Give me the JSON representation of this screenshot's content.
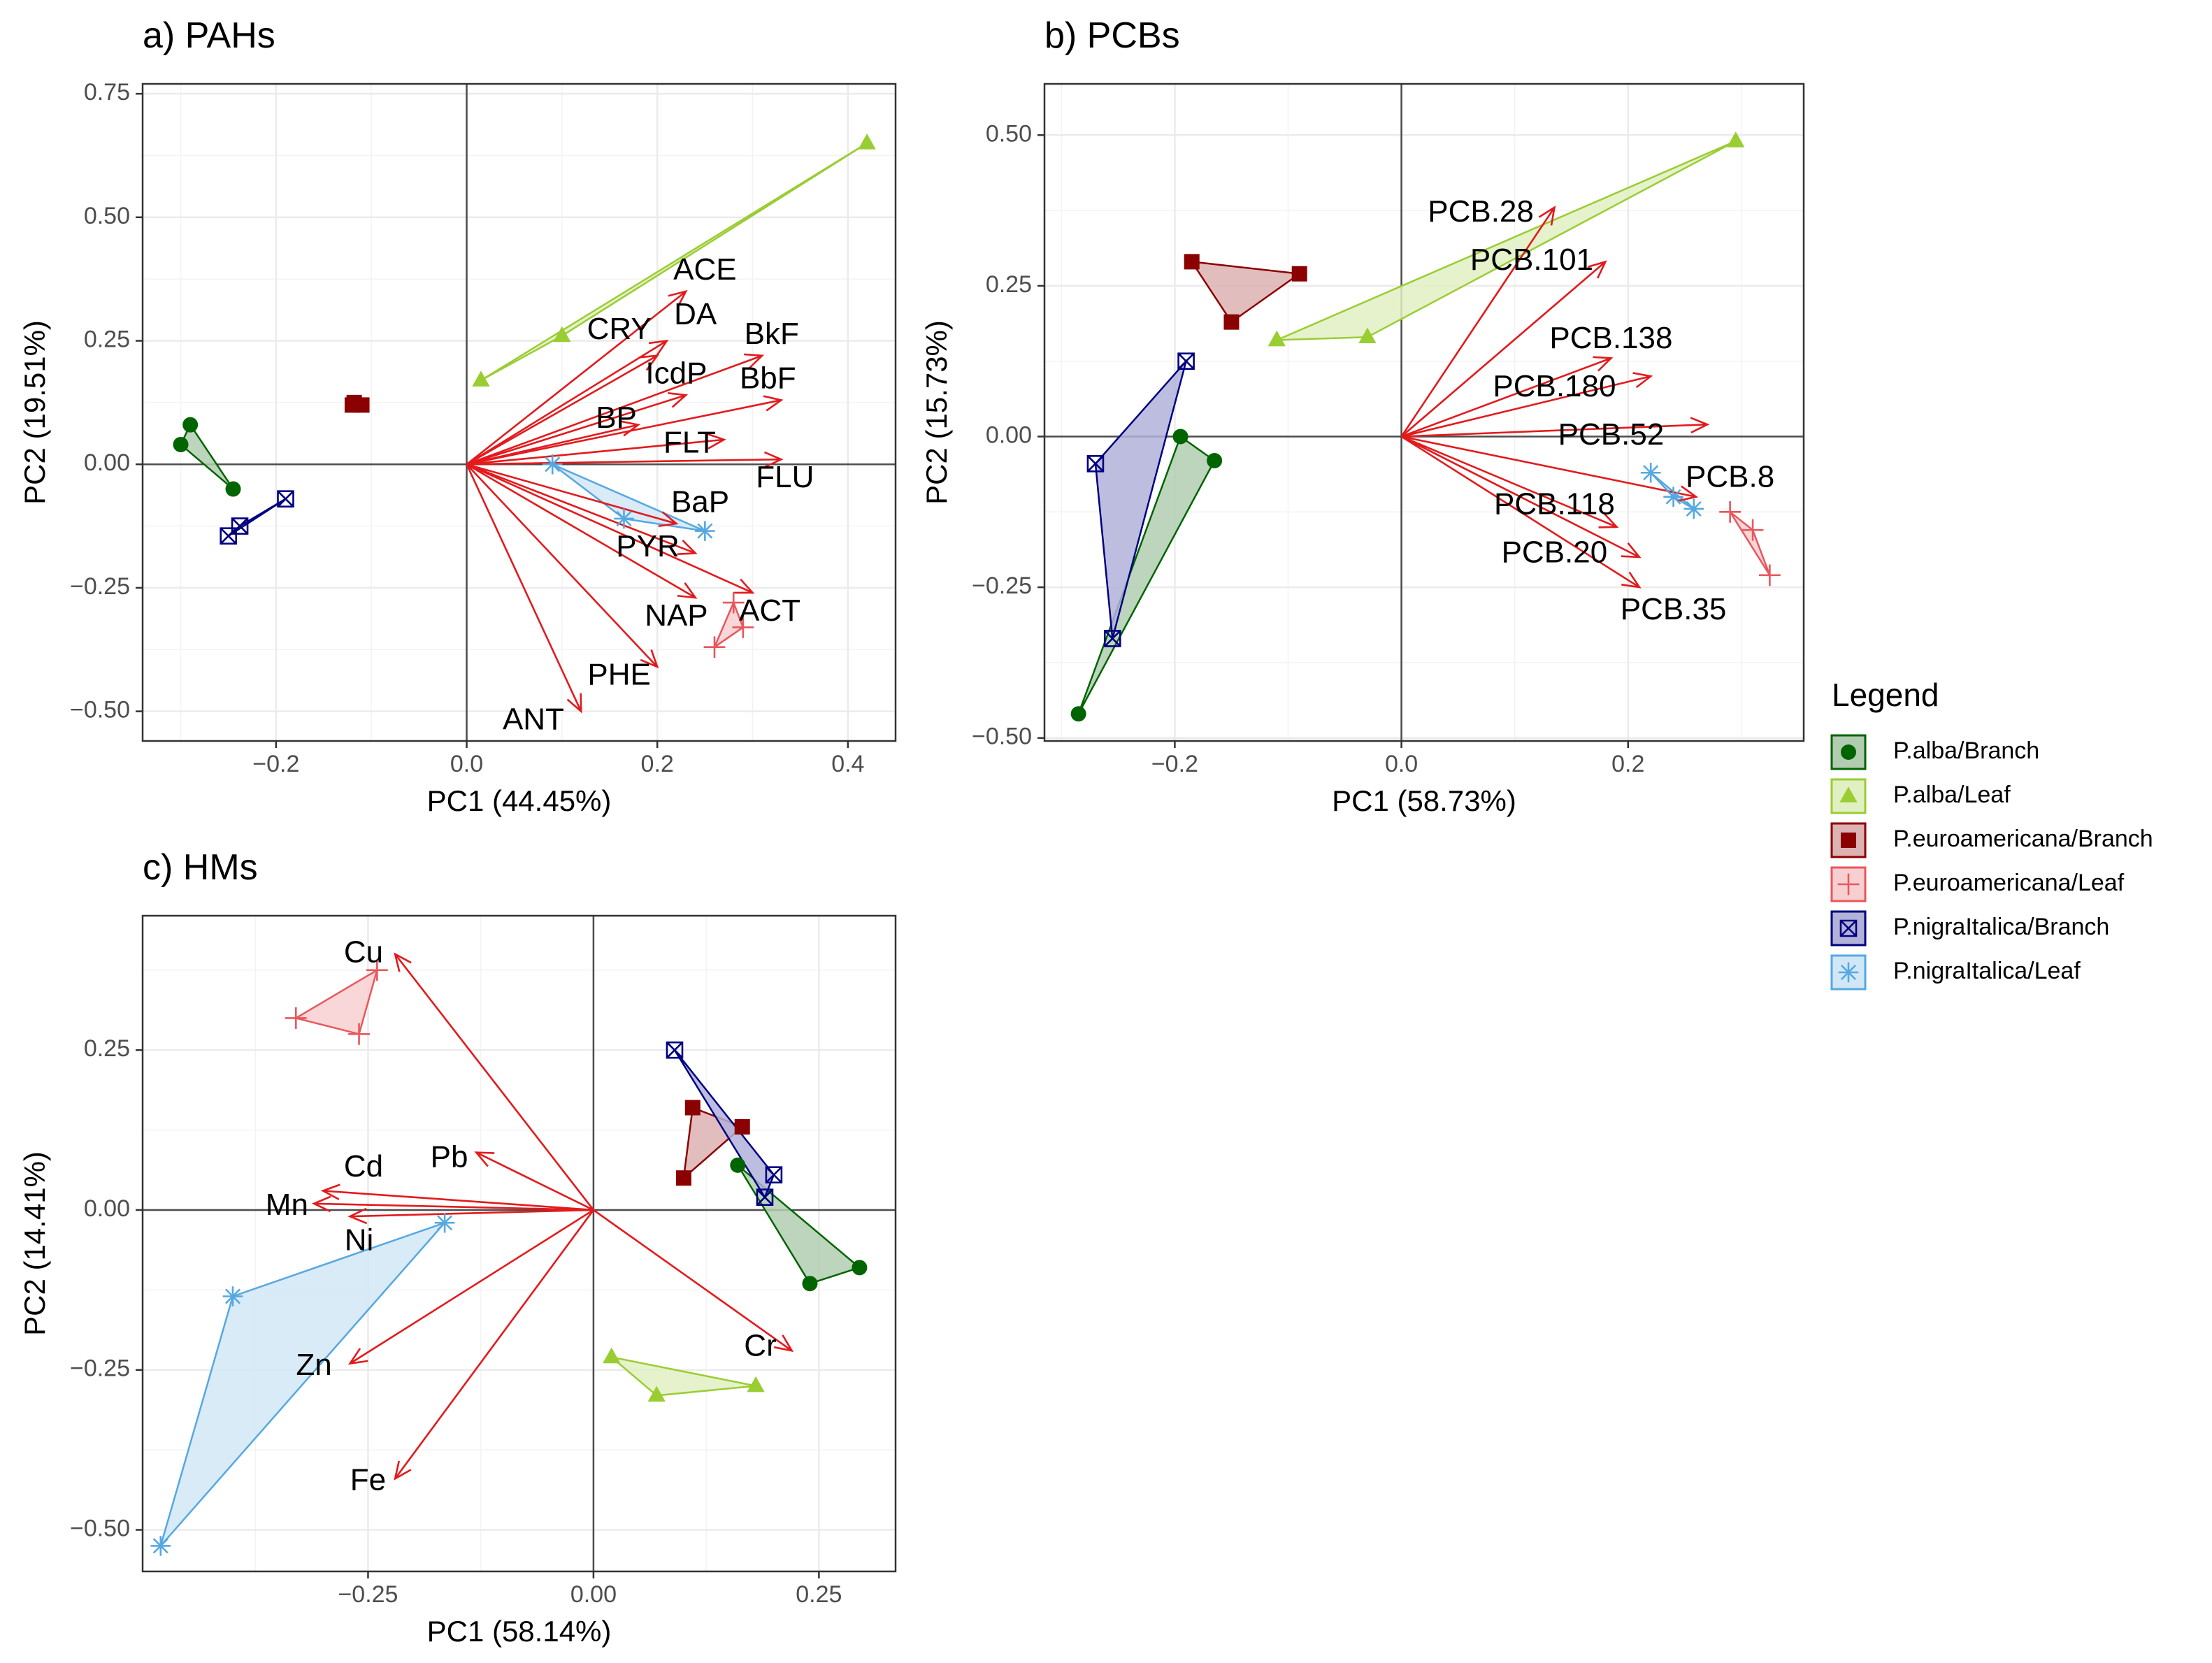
{
  "chart_data": [
    {
      "type": "scatter",
      "subtype": "pca-biplot",
      "title": "a) PAHs",
      "xlabel": "PC1 (44.45%)",
      "ylabel": "PC2 (19.51%)",
      "xlim": [
        -0.34,
        0.45
      ],
      "ylim": [
        -0.56,
        0.77
      ],
      "xticks": [
        -0.2,
        0.0,
        0.2,
        0.4
      ],
      "xtick_labels": [
        "−0.2",
        "0.0",
        "0.2",
        "0.4"
      ],
      "yticks": [
        -0.5,
        -0.25,
        0.0,
        0.25,
        0.5,
        0.75
      ],
      "ytick_labels": [
        "−0.50",
        "−0.25",
        "0.00",
        "0.25",
        "0.50",
        "0.75"
      ],
      "loadings": [
        {
          "name": "ACE",
          "x": 0.23,
          "y": 0.35,
          "label_x": 0.25,
          "label_y": 0.39
        },
        {
          "name": "DA",
          "x": 0.21,
          "y": 0.25,
          "label_x": 0.24,
          "label_y": 0.3
        },
        {
          "name": "CRY",
          "x": 0.2,
          "y": 0.22,
          "label_x": 0.16,
          "label_y": 0.27
        },
        {
          "name": "BkF",
          "x": 0.31,
          "y": 0.22,
          "label_x": 0.32,
          "label_y": 0.26
        },
        {
          "name": "IcdP",
          "x": 0.23,
          "y": 0.14,
          "label_x": 0.22,
          "label_y": 0.18
        },
        {
          "name": "BbF",
          "x": 0.33,
          "y": 0.13,
          "label_x": 0.316,
          "label_y": 0.17
        },
        {
          "name": "BP",
          "x": 0.18,
          "y": 0.08,
          "label_x": 0.157,
          "label_y": 0.09
        },
        {
          "name": "FLT",
          "x": 0.27,
          "y": 0.05,
          "label_x": 0.234,
          "label_y": 0.04
        },
        {
          "name": "FLU",
          "x": 0.33,
          "y": 0.01,
          "label_x": 0.334,
          "label_y": -0.03
        },
        {
          "name": "BaP",
          "x": 0.22,
          "y": -0.12,
          "label_x": 0.245,
          "label_y": -0.08
        },
        {
          "name": "PYR",
          "x": 0.24,
          "y": -0.18,
          "label_x": 0.19,
          "label_y": -0.17
        },
        {
          "name": "ACT",
          "x": 0.3,
          "y": -0.26,
          "label_x": 0.318,
          "label_y": -0.3
        },
        {
          "name": "NAP",
          "x": 0.24,
          "y": -0.27,
          "label_x": 0.22,
          "label_y": -0.31
        },
        {
          "name": "PHE",
          "x": 0.2,
          "y": -0.41,
          "label_x": 0.16,
          "label_y": -0.43
        },
        {
          "name": "ANT",
          "x": 0.12,
          "y": -0.5,
          "label_x": 0.07,
          "label_y": -0.52
        }
      ],
      "groups": [
        {
          "group": "P.alba/Branch",
          "x": [
            -0.3,
            -0.29,
            -0.245
          ],
          "y": [
            0.04,
            0.08,
            -0.05
          ]
        },
        {
          "group": "P.alba/Leaf",
          "x": [
            0.015,
            0.1,
            0.42
          ],
          "y": [
            0.17,
            0.26,
            0.65
          ]
        },
        {
          "group": "P.euroamericana/Branch",
          "x": [
            -0.12,
            -0.11,
            -0.118
          ],
          "y": [
            0.12,
            0.12,
            0.125
          ]
        },
        {
          "group": "P.euroamericana/Leaf",
          "x": [
            0.26,
            0.28,
            0.29
          ],
          "y": [
            -0.37,
            -0.28,
            -0.33
          ]
        },
        {
          "group": "P.nigraItalica/Branch",
          "x": [
            -0.25,
            -0.238,
            -0.19
          ],
          "y": [
            -0.145,
            -0.125,
            -0.07
          ]
        },
        {
          "group": "P.nigraItalica/Leaf",
          "x": [
            0.09,
            0.165,
            0.25
          ],
          "y": [
            0.0,
            -0.11,
            -0.135
          ]
        }
      ]
    },
    {
      "type": "scatter",
      "subtype": "pca-biplot",
      "title": "b) PCBs",
      "xlabel": "PC1 (58.73%)",
      "ylabel": "PC2 (15.73%)",
      "xlim": [
        -0.315,
        0.355
      ],
      "ylim": [
        -0.505,
        0.585
      ],
      "xticks": [
        -0.2,
        0.0,
        0.2
      ],
      "xtick_labels": [
        "−0.2",
        "0.0",
        "0.2"
      ],
      "yticks": [
        -0.5,
        -0.25,
        0.0,
        0.25,
        0.5
      ],
      "ytick_labels": [
        "−0.50",
        "−0.25",
        "0.00",
        "0.25",
        "0.50"
      ],
      "loadings": [
        {
          "name": "PCB.28",
          "x": 0.135,
          "y": 0.38,
          "label_x": 0.07,
          "label_y": 0.37
        },
        {
          "name": "PCB.101",
          "x": 0.18,
          "y": 0.29,
          "label_x": 0.115,
          "label_y": 0.29
        },
        {
          "name": "PCB.138",
          "x": 0.185,
          "y": 0.13,
          "label_x": 0.185,
          "label_y": 0.16
        },
        {
          "name": "PCB.180",
          "x": 0.22,
          "y": 0.1,
          "label_x": 0.135,
          "label_y": 0.08
        },
        {
          "name": "PCB.52",
          "x": 0.27,
          "y": 0.02,
          "label_x": 0.185,
          "label_y": 0.0
        },
        {
          "name": "PCB.8",
          "x": 0.26,
          "y": -0.1,
          "label_x": 0.29,
          "label_y": -0.07
        },
        {
          "name": "PCB.118",
          "x": 0.19,
          "y": -0.15,
          "label_x": 0.135,
          "label_y": -0.115
        },
        {
          "name": "PCB.20",
          "x": 0.21,
          "y": -0.2,
          "label_x": 0.135,
          "label_y": -0.195
        },
        {
          "name": "PCB.35",
          "x": 0.21,
          "y": -0.25,
          "label_x": 0.24,
          "label_y": -0.29
        }
      ],
      "groups": [
        {
          "group": "P.alba/Branch",
          "x": [
            -0.285,
            -0.195,
            -0.165
          ],
          "y": [
            -0.46,
            0.0,
            -0.04
          ]
        },
        {
          "group": "P.alba/Leaf",
          "x": [
            -0.11,
            -0.03,
            0.295
          ],
          "y": [
            0.16,
            0.165,
            0.49
          ]
        },
        {
          "group": "P.euroamericana/Branch",
          "x": [
            -0.185,
            -0.15,
            -0.09
          ],
          "y": [
            0.29,
            0.19,
            0.27
          ]
        },
        {
          "group": "P.euroamericana/Leaf",
          "x": [
            0.29,
            0.31,
            0.325
          ],
          "y": [
            -0.125,
            -0.155,
            -0.23
          ]
        },
        {
          "group": "P.nigraItalica/Branch",
          "x": [
            -0.27,
            -0.19,
            -0.255
          ],
          "y": [
            -0.045,
            0.125,
            -0.335
          ]
        },
        {
          "group": "P.nigraItalica/Leaf",
          "x": [
            0.22,
            0.24,
            0.258
          ],
          "y": [
            -0.06,
            -0.1,
            -0.12
          ]
        }
      ]
    },
    {
      "type": "scatter",
      "subtype": "pca-biplot",
      "title": "c) HMs",
      "xlabel": "PC1 (58.14%)",
      "ylabel": "PC2 (14.41%)",
      "xlim": [
        -0.5,
        0.335
      ],
      "ylim": [
        -0.565,
        0.46
      ],
      "xticks": [
        -0.25,
        0.0,
        0.25
      ],
      "xtick_labels": [
        "−0.25",
        "0.00",
        "0.25"
      ],
      "yticks": [
        -0.5,
        -0.25,
        0.0,
        0.25
      ],
      "ytick_labels": [
        "−0.50",
        "−0.25",
        "0.00",
        "0.25"
      ],
      "loadings": [
        {
          "name": "Cu",
          "x": -0.22,
          "y": 0.4,
          "label_x": -0.255,
          "label_y": 0.4
        },
        {
          "name": "Pb",
          "x": -0.13,
          "y": 0.09,
          "label_x": -0.16,
          "label_y": 0.08
        },
        {
          "name": "Cd",
          "x": -0.3,
          "y": 0.03,
          "label_x": -0.255,
          "label_y": 0.065
        },
        {
          "name": "Mn",
          "x": -0.31,
          "y": 0.01,
          "label_x": -0.34,
          "label_y": 0.005
        },
        {
          "name": "Ni",
          "x": -0.27,
          "y": -0.01,
          "label_x": -0.26,
          "label_y": -0.05
        },
        {
          "name": "Zn",
          "x": -0.27,
          "y": -0.24,
          "label_x": -0.31,
          "label_y": -0.245
        },
        {
          "name": "Fe",
          "x": -0.22,
          "y": -0.42,
          "label_x": -0.25,
          "label_y": -0.425
        },
        {
          "name": "Cr",
          "x": 0.22,
          "y": -0.22,
          "label_x": 0.185,
          "label_y": -0.215
        }
      ],
      "groups": [
        {
          "group": "P.alba/Branch",
          "x": [
            0.16,
            0.24,
            0.295
          ],
          "y": [
            0.07,
            -0.115,
            -0.09
          ]
        },
        {
          "group": "P.alba/Leaf",
          "x": [
            0.02,
            0.07,
            0.18
          ],
          "y": [
            -0.23,
            -0.29,
            -0.275
          ]
        },
        {
          "group": "P.euroamericana/Branch",
          "x": [
            0.1,
            0.11,
            0.165
          ],
          "y": [
            0.05,
            0.16,
            0.13
          ]
        },
        {
          "group": "P.euroamericana/Leaf",
          "x": [
            -0.33,
            -0.24,
            -0.26
          ],
          "y": [
            0.3,
            0.375,
            0.275
          ]
        },
        {
          "group": "P.nigraItalica/Branch",
          "x": [
            0.09,
            0.2,
            0.19
          ],
          "y": [
            0.25,
            0.055,
            0.02
          ]
        },
        {
          "group": "P.nigraItalica/Leaf",
          "x": [
            -0.165,
            -0.4,
            -0.48
          ],
          "y": [
            -0.02,
            -0.135,
            -0.525
          ]
        }
      ]
    }
  ],
  "legend": {
    "title": "Legend",
    "items": [
      {
        "label": "P.alba/Branch",
        "stroke": "#006400",
        "fill": "#b2ccb2",
        "point": "#006400",
        "marker": "circle"
      },
      {
        "label": "P.alba/Leaf",
        "stroke": "#9acd32",
        "fill": "#e1f0c2",
        "point": "#9acd32",
        "marker": "triangle"
      },
      {
        "label": "P.euroamericana/Branch",
        "stroke": "#8b0000",
        "fill": "#ddb2b2",
        "point": "#8b0000",
        "marker": "square"
      },
      {
        "label": "P.euroamericana/Leaf",
        "stroke": "#e8575c",
        "fill": "#f8cfd1",
        "point": "#e8575c",
        "marker": "plus"
      },
      {
        "label": "P.nigraItalica/Branch",
        "stroke": "#000080",
        "fill": "#b2b2d9",
        "point": "#000080",
        "marker": "boxx"
      },
      {
        "label": "P.nigraItalica/Leaf",
        "stroke": "#55a8e2",
        "fill": "#d2e7f6",
        "point": "#55a8e2",
        "marker": "star"
      }
    ]
  },
  "colors": {
    "arrow": "#e31a1c",
    "grid": "#ebebeb",
    "zero_line": "#4d4d4d",
    "frame": "#333333"
  }
}
